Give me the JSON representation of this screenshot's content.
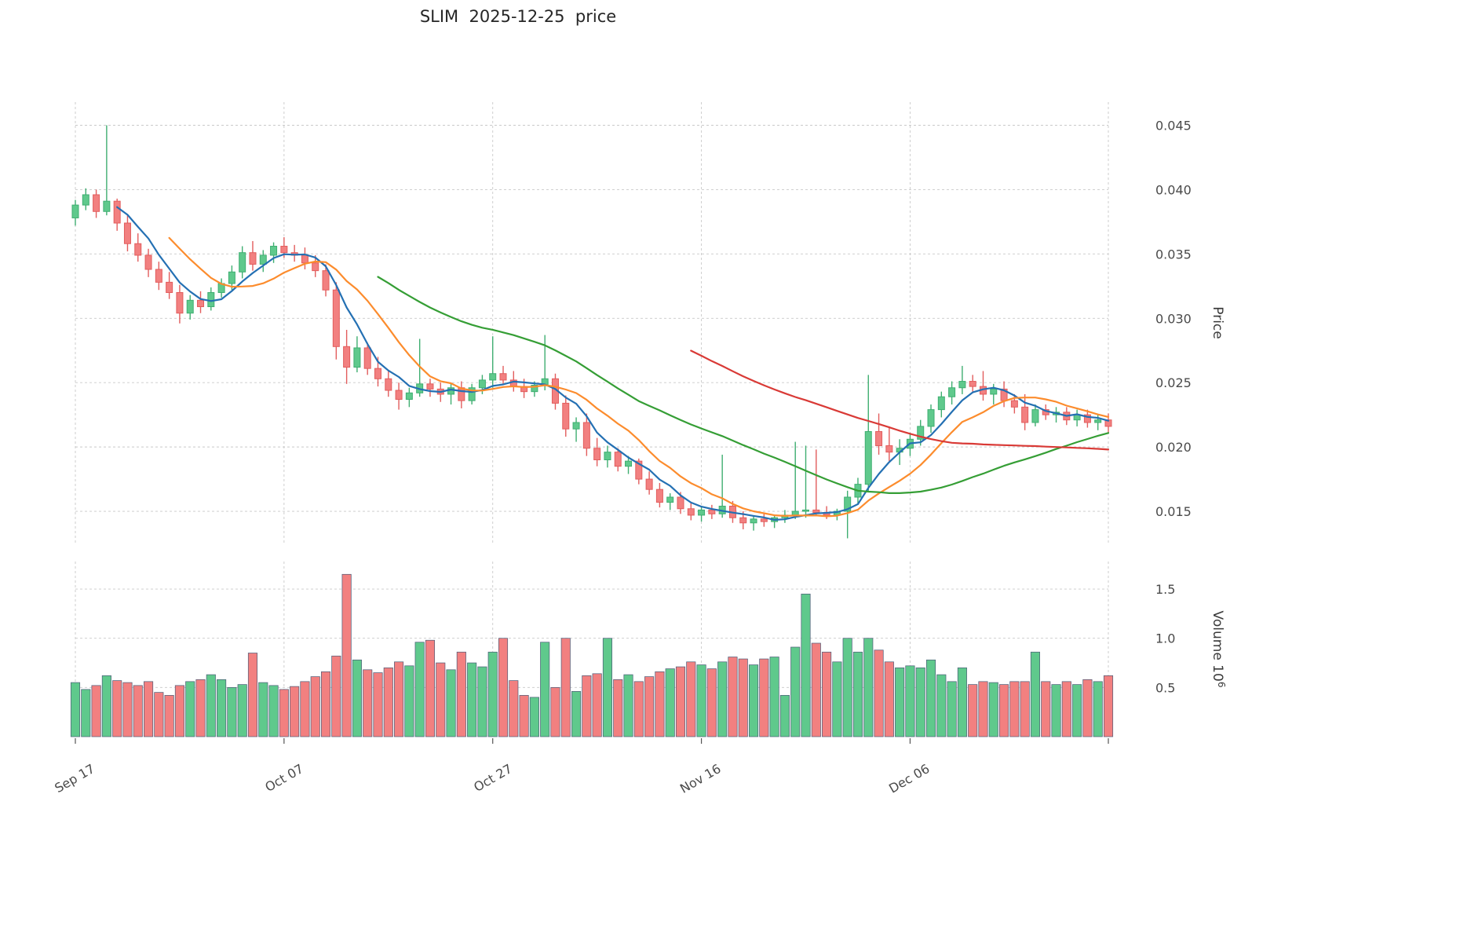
{
  "chart_data": {
    "type": "candlestick",
    "title": "SLIM  2025-12-25  price",
    "symbol": "SLIM",
    "as_of_date": "2025-12-25",
    "panels": [
      "price",
      "volume"
    ],
    "legend": "off",
    "grid": "dashed",
    "price_axis": {
      "label": "Price",
      "side": "right",
      "range": [
        0.0125,
        0.0468
      ],
      "ticks": [
        {
          "v": 0.015,
          "label": "0.015"
        },
        {
          "v": 0.02,
          "label": "0.020"
        },
        {
          "v": 0.025,
          "label": "0.025"
        },
        {
          "v": 0.03,
          "label": "0.030"
        },
        {
          "v": 0.035,
          "label": "0.035"
        },
        {
          "v": 0.04,
          "label": "0.040"
        },
        {
          "v": 0.045,
          "label": "0.045"
        }
      ]
    },
    "volume_axis": {
      "label": "Volume",
      "scale_base": "10",
      "scale_exponent": "6",
      "side": "right",
      "range": [
        0,
        1.78
      ],
      "ticks": [
        {
          "v": 0.5,
          "label": "0.5"
        },
        {
          "v": 1.0,
          "label": "1.0"
        },
        {
          "v": 1.5,
          "label": "1.5"
        }
      ]
    },
    "x_axis": {
      "ticks": [
        {
          "i": 0,
          "label": "Sep 17"
        },
        {
          "i": 20,
          "label": "Oct 07"
        },
        {
          "i": 40,
          "label": "Oct 27"
        },
        {
          "i": 60,
          "label": "Nov 16"
        },
        {
          "i": 80,
          "label": "Dec 06"
        }
      ]
    },
    "colors": {
      "up": "#5fc98c",
      "up_edge": "#3fae71",
      "down": "#f28080",
      "down_edge": "#e25d5d",
      "volume_edge": "#4c5c78",
      "grid": "#c9c9c9",
      "text": "#4a4a4a",
      "title": "#262626"
    },
    "overlays": [
      {
        "name": "sma5",
        "period": 5,
        "color": "#2470b3"
      },
      {
        "name": "sma10",
        "period": 10,
        "color": "#fc8c2d"
      },
      {
        "name": "sma30",
        "period": 30,
        "color": "#359e35"
      },
      {
        "name": "sma60",
        "period": 60,
        "color": "#d93a36"
      }
    ],
    "candles": {
      "columns": [
        "date",
        "open",
        "high",
        "low",
        "close",
        "volume_millions"
      ],
      "rows": [
        [
          "2025-09-17",
          0.0378,
          0.0392,
          0.0372,
          0.0388,
          0.55
        ],
        [
          "2025-09-18",
          0.0388,
          0.0401,
          0.0384,
          0.0396,
          0.48
        ],
        [
          "2025-09-19",
          0.0396,
          0.04,
          0.0378,
          0.0383,
          0.52
        ],
        [
          "2025-09-20",
          0.0383,
          0.045,
          0.038,
          0.0391,
          0.62
        ],
        [
          "2025-09-21",
          0.0391,
          0.0393,
          0.0368,
          0.0374,
          0.57
        ],
        [
          "2025-09-22",
          0.0374,
          0.038,
          0.0352,
          0.0358,
          0.55
        ],
        [
          "2025-09-23",
          0.0358,
          0.0366,
          0.0344,
          0.0349,
          0.52
        ],
        [
          "2025-09-24",
          0.0349,
          0.0354,
          0.0332,
          0.0338,
          0.56
        ],
        [
          "2025-09-25",
          0.0338,
          0.0344,
          0.0322,
          0.0328,
          0.45
        ],
        [
          "2025-09-26",
          0.0328,
          0.0336,
          0.0315,
          0.032,
          0.42
        ],
        [
          "2025-09-27",
          0.032,
          0.0326,
          0.0296,
          0.0304,
          0.52
        ],
        [
          "2025-09-28",
          0.0304,
          0.0318,
          0.0299,
          0.0314,
          0.56
        ],
        [
          "2025-09-29",
          0.0314,
          0.0321,
          0.0304,
          0.0309,
          0.58
        ],
        [
          "2025-09-30",
          0.0309,
          0.0324,
          0.0306,
          0.032,
          0.63
        ],
        [
          "2025-10-01",
          0.032,
          0.0331,
          0.0316,
          0.0327,
          0.58
        ],
        [
          "2025-10-02",
          0.0327,
          0.0341,
          0.0322,
          0.0336,
          0.5
        ],
        [
          "2025-10-03",
          0.0336,
          0.0356,
          0.0331,
          0.0351,
          0.53
        ],
        [
          "2025-10-04",
          0.0351,
          0.036,
          0.0337,
          0.0342,
          0.85
        ],
        [
          "2025-10-05",
          0.0342,
          0.0353,
          0.0336,
          0.0349,
          0.55
        ],
        [
          "2025-10-06",
          0.0349,
          0.0359,
          0.0343,
          0.0356,
          0.52
        ],
        [
          "2025-10-07",
          0.0356,
          0.0363,
          0.0347,
          0.0351,
          0.48
        ],
        [
          "2025-10-08",
          0.0351,
          0.0357,
          0.0344,
          0.0349,
          0.51
        ],
        [
          "2025-10-09",
          0.0349,
          0.0355,
          0.0338,
          0.0343,
          0.56
        ],
        [
          "2025-10-10",
          0.0343,
          0.0349,
          0.0332,
          0.0337,
          0.61
        ],
        [
          "2025-10-11",
          0.0337,
          0.0342,
          0.0317,
          0.0322,
          0.66
        ],
        [
          "2025-10-12",
          0.0322,
          0.0328,
          0.0268,
          0.0278,
          0.82
        ],
        [
          "2025-10-13",
          0.0278,
          0.0291,
          0.0249,
          0.0262,
          1.65
        ],
        [
          "2025-10-14",
          0.0262,
          0.0286,
          0.0258,
          0.0277,
          0.78
        ],
        [
          "2025-10-15",
          0.0277,
          0.0281,
          0.0256,
          0.0261,
          0.68
        ],
        [
          "2025-10-16",
          0.0261,
          0.027,
          0.0247,
          0.0253,
          0.65
        ],
        [
          "2025-10-17",
          0.0253,
          0.0259,
          0.0239,
          0.0244,
          0.7
        ],
        [
          "2025-10-18",
          0.0244,
          0.025,
          0.0229,
          0.0237,
          0.76
        ],
        [
          "2025-10-19",
          0.0237,
          0.0246,
          0.0231,
          0.0242,
          0.72
        ],
        [
          "2025-10-20",
          0.0242,
          0.0284,
          0.0239,
          0.0249,
          0.96
        ],
        [
          "2025-10-21",
          0.0249,
          0.0253,
          0.0239,
          0.0245,
          0.98
        ],
        [
          "2025-10-22",
          0.0245,
          0.025,
          0.0235,
          0.0241,
          0.75
        ],
        [
          "2025-10-23",
          0.0241,
          0.0249,
          0.0233,
          0.0246,
          0.68
        ],
        [
          "2025-10-24",
          0.0246,
          0.0251,
          0.023,
          0.0236,
          0.86
        ],
        [
          "2025-10-25",
          0.0236,
          0.0249,
          0.0233,
          0.0246,
          0.75
        ],
        [
          "2025-10-26",
          0.0246,
          0.0256,
          0.0241,
          0.0252,
          0.71
        ],
        [
          "2025-10-27",
          0.0252,
          0.0286,
          0.0246,
          0.0257,
          0.86
        ],
        [
          "2025-10-28",
          0.0257,
          0.0263,
          0.0248,
          0.0252,
          1.0
        ],
        [
          "2025-10-29",
          0.0252,
          0.0259,
          0.0243,
          0.0247,
          0.57
        ],
        [
          "2025-10-30",
          0.0247,
          0.0253,
          0.0238,
          0.0243,
          0.42
        ],
        [
          "2025-10-31",
          0.0243,
          0.0251,
          0.0239,
          0.0248,
          0.4
        ],
        [
          "2025-11-01",
          0.0248,
          0.0287,
          0.0244,
          0.0253,
          0.96
        ],
        [
          "2025-11-02",
          0.0253,
          0.0257,
          0.0229,
          0.0234,
          0.5
        ],
        [
          "2025-11-03",
          0.0234,
          0.024,
          0.0208,
          0.0214,
          1.0
        ],
        [
          "2025-11-04",
          0.0214,
          0.0223,
          0.0204,
          0.0219,
          0.46
        ],
        [
          "2025-11-05",
          0.0219,
          0.0226,
          0.0193,
          0.0199,
          0.62
        ],
        [
          "2025-11-06",
          0.0199,
          0.0207,
          0.0185,
          0.019,
          0.64
        ],
        [
          "2025-11-07",
          0.019,
          0.0201,
          0.0184,
          0.0196,
          1.0
        ],
        [
          "2025-11-08",
          0.0196,
          0.0199,
          0.0181,
          0.0185,
          0.58
        ],
        [
          "2025-11-09",
          0.0185,
          0.0193,
          0.0179,
          0.0189,
          0.63
        ],
        [
          "2025-11-10",
          0.0189,
          0.0191,
          0.0171,
          0.0175,
          0.56
        ],
        [
          "2025-11-11",
          0.0175,
          0.0181,
          0.0163,
          0.0167,
          0.61
        ],
        [
          "2025-11-12",
          0.0167,
          0.0172,
          0.0153,
          0.0157,
          0.66
        ],
        [
          "2025-11-13",
          0.0157,
          0.0164,
          0.0151,
          0.0161,
          0.69
        ],
        [
          "2025-11-14",
          0.0161,
          0.0165,
          0.0148,
          0.0152,
          0.71
        ],
        [
          "2025-11-15",
          0.0152,
          0.0157,
          0.0143,
          0.0147,
          0.76
        ],
        [
          "2025-11-16",
          0.0147,
          0.0154,
          0.0142,
          0.0151,
          0.73
        ],
        [
          "2025-11-17",
          0.0151,
          0.0155,
          0.0144,
          0.0148,
          0.69
        ],
        [
          "2025-11-18",
          0.0148,
          0.0194,
          0.0145,
          0.0154,
          0.76
        ],
        [
          "2025-11-19",
          0.0154,
          0.0158,
          0.0141,
          0.0145,
          0.81
        ],
        [
          "2025-11-20",
          0.0145,
          0.015,
          0.0136,
          0.0141,
          0.79
        ],
        [
          "2025-11-21",
          0.0141,
          0.0147,
          0.0135,
          0.0144,
          0.73
        ],
        [
          "2025-11-22",
          0.0144,
          0.0149,
          0.0138,
          0.0142,
          0.79
        ],
        [
          "2025-11-23",
          0.0142,
          0.0147,
          0.0137,
          0.0145,
          0.81
        ],
        [
          "2025-11-24",
          0.0145,
          0.0151,
          0.0141,
          0.0147,
          0.42
        ],
        [
          "2025-11-25",
          0.0147,
          0.0204,
          0.0144,
          0.015,
          0.91
        ],
        [
          "2025-11-26",
          0.015,
          0.0201,
          0.0145,
          0.0151,
          1.45
        ],
        [
          "2025-11-27",
          0.0151,
          0.0198,
          0.0147,
          0.0149,
          0.95
        ],
        [
          "2025-11-28",
          0.0149,
          0.0154,
          0.0144,
          0.0147,
          0.86
        ],
        [
          "2025-11-29",
          0.0147,
          0.0152,
          0.0143,
          0.015,
          0.76
        ],
        [
          "2025-11-30",
          0.015,
          0.0166,
          0.0129,
          0.0161,
          1.0
        ],
        [
          "2025-12-01",
          0.0161,
          0.0176,
          0.0155,
          0.0171,
          0.86
        ],
        [
          "2025-12-02",
          0.0171,
          0.0256,
          0.0166,
          0.0212,
          1.0
        ],
        [
          "2025-12-03",
          0.0212,
          0.0226,
          0.0194,
          0.0201,
          0.88
        ],
        [
          "2025-12-04",
          0.0201,
          0.0216,
          0.0189,
          0.0196,
          0.76
        ],
        [
          "2025-12-05",
          0.0196,
          0.0206,
          0.0186,
          0.0199,
          0.7
        ],
        [
          "2025-12-06",
          0.0199,
          0.0211,
          0.0193,
          0.0206,
          0.72
        ],
        [
          "2025-12-07",
          0.0206,
          0.0221,
          0.0201,
          0.0216,
          0.7
        ],
        [
          "2025-12-08",
          0.0216,
          0.0233,
          0.0211,
          0.0229,
          0.78
        ],
        [
          "2025-12-09",
          0.0229,
          0.0243,
          0.0223,
          0.0239,
          0.63
        ],
        [
          "2025-12-10",
          0.0239,
          0.0251,
          0.0233,
          0.0246,
          0.56
        ],
        [
          "2025-12-11",
          0.0246,
          0.0263,
          0.0241,
          0.0251,
          0.7
        ],
        [
          "2025-12-12",
          0.0251,
          0.0256,
          0.0243,
          0.0247,
          0.53
        ],
        [
          "2025-12-13",
          0.0247,
          0.0259,
          0.0236,
          0.0241,
          0.56
        ],
        [
          "2025-12-14",
          0.0241,
          0.0249,
          0.0233,
          0.0245,
          0.55
        ],
        [
          "2025-12-15",
          0.0245,
          0.0251,
          0.0231,
          0.0236,
          0.53
        ],
        [
          "2025-12-16",
          0.0236,
          0.0241,
          0.0226,
          0.0231,
          0.56
        ],
        [
          "2025-12-17",
          0.0231,
          0.0241,
          0.0213,
          0.0219,
          0.56
        ],
        [
          "2025-12-18",
          0.0219,
          0.0233,
          0.0216,
          0.0229,
          0.86
        ],
        [
          "2025-12-19",
          0.0229,
          0.0233,
          0.0221,
          0.0225,
          0.56
        ],
        [
          "2025-12-20",
          0.0225,
          0.0231,
          0.0219,
          0.0227,
          0.53
        ],
        [
          "2025-12-21",
          0.0227,
          0.0231,
          0.0217,
          0.0221,
          0.56
        ],
        [
          "2025-12-22",
          0.0221,
          0.0229,
          0.0216,
          0.0225,
          0.53
        ],
        [
          "2025-12-23",
          0.0225,
          0.0229,
          0.0215,
          0.0219,
          0.58
        ],
        [
          "2025-12-24",
          0.0219,
          0.0225,
          0.0213,
          0.0221,
          0.56
        ],
        [
          "2025-12-25",
          0.0221,
          0.0226,
          0.0211,
          0.0216,
          0.62
        ]
      ]
    }
  }
}
